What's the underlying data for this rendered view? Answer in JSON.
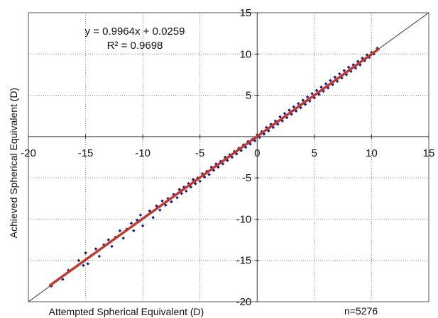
{
  "chart_data": {
    "type": "scatter",
    "title": "",
    "xlabel": "Attempted Spherical Equivalent (D)",
    "ylabel": "Achieved Spherical Equivalent (D)",
    "xlim": [
      -20,
      15
    ],
    "ylim": [
      -20,
      15
    ],
    "x_ticks": [
      -20,
      -15,
      -10,
      -5,
      0,
      5,
      10,
      15
    ],
    "y_ticks": [
      -20,
      -15,
      -10,
      -5,
      0,
      5,
      10,
      15
    ],
    "x_tick_labels": [
      "-20",
      "-15",
      "-10",
      "-5",
      "0",
      "5",
      "10",
      "15"
    ],
    "y_tick_labels": [
      "-20",
      "-15",
      "-10",
      "-5",
      "0",
      "5",
      "10",
      "15"
    ],
    "grid": "dotted",
    "sample_count_label": "n=5276",
    "equation": "y = 0.9964x + 0.0259",
    "r_squared": "R² = 0.9698",
    "fit_line": {
      "slope": 0.9964,
      "intercept": 0.0259,
      "x_range": [
        -18.1,
        10.6
      ],
      "color": "#c0392b"
    },
    "reference_line": {
      "label": "",
      "x_range": [
        -20,
        15
      ],
      "color": "#333333"
    },
    "point_color": "#1a1a8c",
    "series": [
      {
        "values_description": "",
        "points": [
          [
            -18.0,
            -18.1
          ],
          [
            -17.0,
            -17.3
          ],
          [
            -16.5,
            -16.2
          ],
          [
            -15.6,
            -15.0
          ],
          [
            -15.2,
            -15.6
          ],
          [
            -15.0,
            -14.1
          ],
          [
            -14.8,
            -15.4
          ],
          [
            -14.5,
            -14.4
          ],
          [
            -14.1,
            -13.6
          ],
          [
            -13.8,
            -14.5
          ],
          [
            -13.4,
            -13.1
          ],
          [
            -13.0,
            -12.5
          ],
          [
            -12.7,
            -13.3
          ],
          [
            -12.4,
            -12.2
          ],
          [
            -12.0,
            -11.4
          ],
          [
            -11.7,
            -12.3
          ],
          [
            -11.4,
            -11.2
          ],
          [
            -11.0,
            -10.5
          ],
          [
            -10.8,
            -11.4
          ],
          [
            -10.5,
            -10.1
          ],
          [
            -10.2,
            -9.5
          ],
          [
            -10.0,
            -10.8
          ],
          [
            -9.7,
            -9.6
          ],
          [
            -9.4,
            -9.0
          ],
          [
            -9.1,
            -9.8
          ],
          [
            -8.8,
            -8.4
          ],
          [
            -8.5,
            -8.9
          ],
          [
            -8.3,
            -7.8
          ],
          [
            -8.0,
            -8.3
          ],
          [
            -7.8,
            -7.5
          ],
          [
            -7.5,
            -7.9
          ],
          [
            -7.3,
            -7.0
          ],
          [
            -7.0,
            -7.4
          ],
          [
            -6.8,
            -6.4
          ],
          [
            -6.6,
            -6.9
          ],
          [
            -6.4,
            -6.1
          ],
          [
            -6.2,
            -6.6
          ],
          [
            -6.0,
            -5.7
          ],
          [
            -5.8,
            -6.1
          ],
          [
            -5.6,
            -5.2
          ],
          [
            -5.4,
            -5.7
          ],
          [
            -5.2,
            -5.0
          ],
          [
            -5.0,
            -5.4
          ],
          [
            -4.8,
            -4.5
          ],
          [
            -4.6,
            -4.9
          ],
          [
            -4.4,
            -4.2
          ],
          [
            -4.2,
            -4.6
          ],
          [
            -4.0,
            -3.7
          ],
          [
            -3.8,
            -4.1
          ],
          [
            -3.6,
            -3.3
          ],
          [
            -3.4,
            -3.7
          ],
          [
            -3.2,
            -3.0
          ],
          [
            -3.0,
            -3.3
          ],
          [
            -2.8,
            -2.5
          ],
          [
            -2.6,
            -2.9
          ],
          [
            -2.4,
            -2.2
          ],
          [
            -2.2,
            -2.5
          ],
          [
            -2.0,
            -1.8
          ],
          [
            -1.8,
            -2.1
          ],
          [
            -1.6,
            -1.4
          ],
          [
            -1.4,
            -1.7
          ],
          [
            -1.2,
            -1.0
          ],
          [
            -1.0,
            -1.3
          ],
          [
            -0.8,
            -0.6
          ],
          [
            -0.6,
            -0.9
          ],
          [
            -0.4,
            -0.3
          ],
          [
            -0.2,
            -0.5
          ],
          [
            0.0,
            0.2
          ],
          [
            0.2,
            -0.1
          ],
          [
            0.4,
            0.6
          ],
          [
            0.6,
            0.3
          ],
          [
            0.8,
            1.1
          ],
          [
            1.0,
            0.7
          ],
          [
            1.2,
            1.5
          ],
          [
            1.4,
            1.1
          ],
          [
            1.6,
            1.9
          ],
          [
            1.8,
            1.5
          ],
          [
            2.0,
            2.4
          ],
          [
            2.2,
            1.9
          ],
          [
            2.4,
            2.8
          ],
          [
            2.6,
            2.3
          ],
          [
            2.8,
            3.2
          ],
          [
            3.0,
            2.7
          ],
          [
            3.2,
            3.6
          ],
          [
            3.4,
            3.1
          ],
          [
            3.6,
            4.0
          ],
          [
            3.8,
            3.5
          ],
          [
            4.0,
            4.4
          ],
          [
            4.2,
            3.9
          ],
          [
            4.4,
            4.8
          ],
          [
            4.6,
            4.3
          ],
          [
            4.8,
            5.2
          ],
          [
            5.0,
            4.7
          ],
          [
            5.2,
            5.6
          ],
          [
            5.4,
            5.1
          ],
          [
            5.6,
            6.0
          ],
          [
            5.8,
            5.5
          ],
          [
            6.0,
            6.4
          ],
          [
            6.2,
            5.9
          ],
          [
            6.4,
            6.8
          ],
          [
            6.6,
            6.3
          ],
          [
            6.8,
            7.2
          ],
          [
            7.0,
            6.7
          ],
          [
            7.2,
            7.6
          ],
          [
            7.4,
            7.1
          ],
          [
            7.6,
            8.0
          ],
          [
            7.8,
            7.5
          ],
          [
            8.0,
            8.4
          ],
          [
            8.2,
            7.9
          ],
          [
            8.4,
            8.7
          ],
          [
            8.6,
            8.3
          ],
          [
            8.8,
            9.1
          ],
          [
            9.0,
            8.7
          ],
          [
            9.2,
            9.5
          ],
          [
            9.4,
            9.2
          ],
          [
            9.6,
            9.9
          ],
          [
            9.8,
            9.6
          ],
          [
            10.0,
            10.2
          ],
          [
            10.2,
            10.0
          ],
          [
            10.5,
            10.7
          ]
        ]
      }
    ]
  }
}
